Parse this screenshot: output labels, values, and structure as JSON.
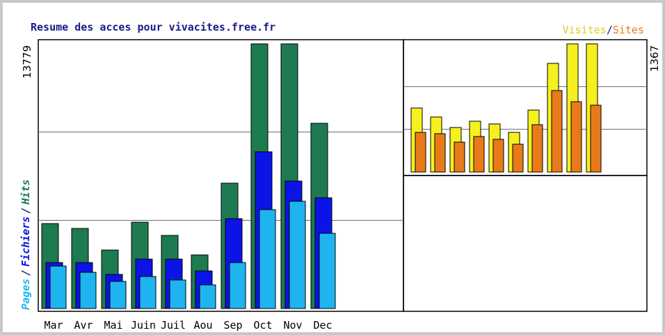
{
  "chart_data": [
    {
      "type": "bar",
      "title": "Resume des acces pour vivacites.free.fr",
      "categories": [
        "Mar",
        "Avr",
        "Mai",
        "Juin",
        "Juil",
        "Aou",
        "Sep",
        "Oct",
        "Nov",
        "Dec"
      ],
      "label_separator": "/",
      "series": [
        {
          "name": "Hits",
          "color": "#1e7a50",
          "values": [
            4424,
            4170,
            3046,
            4496,
            3807,
            2792,
            6527,
            13779,
            13779,
            9645
          ]
        },
        {
          "name": "Fichiers",
          "color": "#0a14e6",
          "values": [
            2393,
            2393,
            1777,
            2574,
            2574,
            1958,
            4678,
            8159,
            6636,
            5765
          ]
        },
        {
          "name": "Pages",
          "color": "#1eb4f0",
          "values": [
            2212,
            1886,
            1414,
            1668,
            1487,
            1233,
            2393,
            5149,
            5584,
            3916
          ]
        }
      ],
      "ylim": [
        0,
        13779
      ],
      "yticks": [
        13779
      ],
      "grid": true
    },
    {
      "type": "bar",
      "label_separator": "/",
      "series": [
        {
          "name": "Visites",
          "color": "#f5f01e",
          "values": [
            683,
            587,
            475,
            542,
            513,
            423,
            661,
            1159,
            1367,
            1367
          ]
        },
        {
          "name": "Sites",
          "color": "#e87a1a",
          "values": [
            423,
            409,
            319,
            379,
            349,
            297,
            505,
            869,
            750,
            713
          ]
        }
      ],
      "ylim": [
        0,
        1367
      ],
      "yticks": [
        1367
      ],
      "grid": true
    }
  ]
}
